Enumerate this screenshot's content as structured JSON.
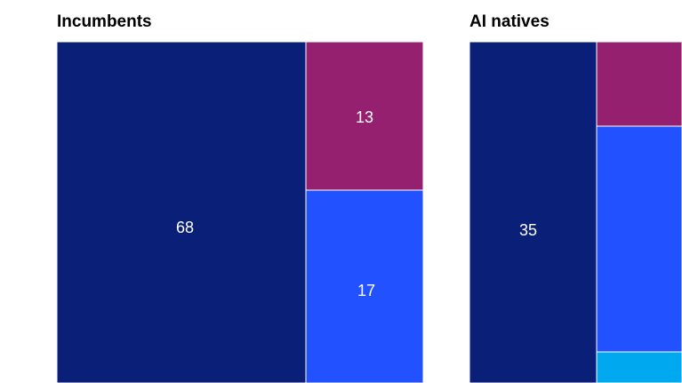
{
  "chart_data": [
    {
      "type": "treemap",
      "title": "Incumbents",
      "cells": [
        {
          "value": 68,
          "label": "68",
          "color": "#0a1f78"
        },
        {
          "value": 13,
          "label": "13",
          "color": "#962070"
        },
        {
          "value": 17,
          "label": "17",
          "color": "#2251ff"
        }
      ]
    },
    {
      "type": "treemap",
      "title": "AI natives",
      "cells": [
        {
          "value": 35,
          "label": "35",
          "color": "#0a1f78"
        },
        {
          "value": null,
          "label": "",
          "color": "#962070"
        },
        {
          "value": null,
          "label": "",
          "color": "#2251ff"
        },
        {
          "value": null,
          "label": "",
          "color": "#00a8f0"
        }
      ]
    }
  ]
}
